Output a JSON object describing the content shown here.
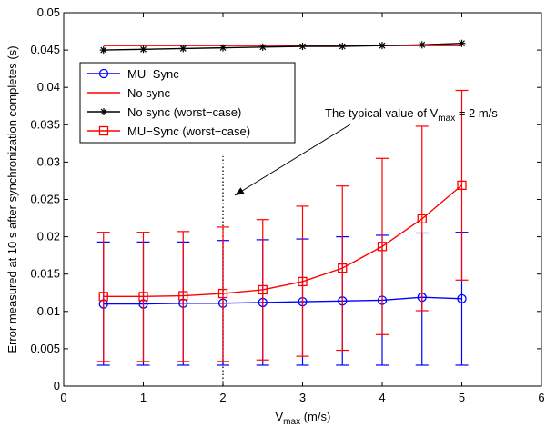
{
  "chart_data": {
    "type": "line",
    "xlabel": "V",
    "xlabel_sub": "max",
    "xlabel_unit": " (m/s)",
    "ylabel": "Error measured at 10 s after synchronization completes (s)",
    "xlim": [
      0,
      6
    ],
    "ylim": [
      0,
      0.05
    ],
    "xticks": [
      0,
      1,
      2,
      3,
      4,
      5,
      6
    ],
    "yticks": [
      0,
      0.005,
      0.01,
      0.015,
      0.02,
      0.025,
      0.03,
      0.035,
      0.04,
      0.045,
      0.05
    ],
    "xtick_labels": [
      "0",
      "1",
      "2",
      "3",
      "4",
      "5",
      "6"
    ],
    "ytick_labels": [
      "0",
      "0.005",
      "0.01",
      "0.015",
      "0.02",
      "0.025",
      "0.03",
      "0.035",
      "0.04",
      "0.045",
      "0.05"
    ],
    "grid": false,
    "legend_position": "upper-left",
    "x": [
      0.5,
      1,
      1.5,
      2,
      2.5,
      3,
      3.5,
      4,
      4.5,
      5
    ],
    "series": [
      {
        "name": "MU−Sync",
        "color": "#0000ff",
        "marker": "circle",
        "values": [
          0.011,
          0.011,
          0.0111,
          0.0111,
          0.0112,
          0.0113,
          0.0114,
          0.0115,
          0.0119,
          0.0117
        ],
        "err_low": [
          0.0028,
          0.0028,
          0.0028,
          0.0028,
          0.0028,
          0.0028,
          0.0028,
          0.0028,
          0.0028,
          0.0028
        ],
        "err_high": [
          0.0193,
          0.0193,
          0.0193,
          0.0195,
          0.0196,
          0.0197,
          0.02,
          0.0202,
          0.0205,
          0.0206
        ]
      },
      {
        "name": "No sync",
        "color": "#ff0000",
        "marker": "none",
        "values": [
          0.0456,
          0.0456,
          0.0456,
          0.0456,
          0.0456,
          0.0456,
          0.0456,
          0.0456,
          0.0456,
          0.0456
        ]
      },
      {
        "name": "No sync (worst−case)",
        "color": "#000000",
        "marker": "star",
        "values": [
          0.045,
          0.0451,
          0.0452,
          0.0453,
          0.0454,
          0.0455,
          0.0455,
          0.0456,
          0.0457,
          0.0459
        ]
      },
      {
        "name": "MU−Sync (worst−case)",
        "color": "#ff0000",
        "marker": "square",
        "values": [
          0.012,
          0.012,
          0.0121,
          0.0124,
          0.0129,
          0.014,
          0.0158,
          0.0187,
          0.0224,
          0.0269
        ],
        "err_low": [
          0.0033,
          0.0033,
          0.0033,
          0.0033,
          0.0035,
          0.004,
          0.0048,
          0.0069,
          0.0101,
          0.0142
        ],
        "err_high": [
          0.0206,
          0.0206,
          0.0207,
          0.0213,
          0.0223,
          0.0241,
          0.0268,
          0.0305,
          0.0348,
          0.0396
        ]
      }
    ],
    "annotation": {
      "text_prefix": "The typical value of V",
      "text_sub": "max",
      "text_suffix": " = 2 m/s",
      "vline_x": 2,
      "vline_ymin": 0,
      "vline_ymax": 0.0308
    }
  }
}
